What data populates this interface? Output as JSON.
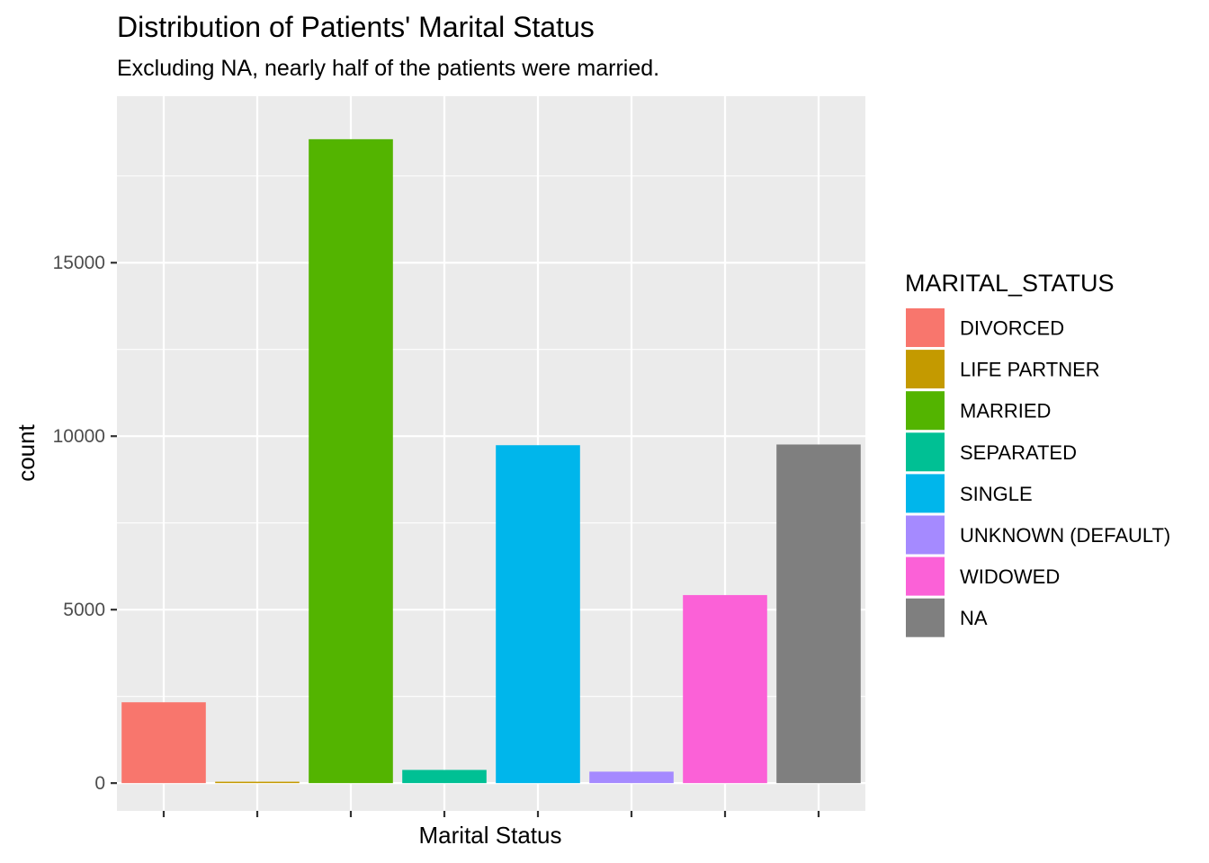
{
  "chart_data": {
    "type": "bar",
    "title": "Distribution of Patients' Marital Status",
    "subtitle": "Excluding NA, nearly half of the patients were married.",
    "xlabel": "Marital Status",
    "ylabel": "count",
    "ylim": [
      -800,
      19800
    ],
    "yticks": [
      0,
      5000,
      10000,
      15000
    ],
    "ytick_labels": [
      "0",
      "5000",
      "10000",
      "15000"
    ],
    "grid": true,
    "x_tick_labels_shown": false,
    "legend_title": "MARITAL_STATUS",
    "legend_position": "right",
    "categories": [
      "DIVORCED",
      "LIFE PARTNER",
      "MARRIED",
      "SEPARATED",
      "SINGLE",
      "UNKNOWN (DEFAULT)",
      "WIDOWED",
      "NA"
    ],
    "values": [
      2330,
      40,
      18560,
      380,
      9740,
      330,
      5420,
      9760
    ],
    "colors": [
      "#F8766D",
      "#C49A00",
      "#53B400",
      "#00C094",
      "#00B6EB",
      "#A58AFF",
      "#FB61D7",
      "#7F7F7F"
    ],
    "panel_background": "#EBEBEB",
    "grid_color": "#FFFFFF"
  }
}
